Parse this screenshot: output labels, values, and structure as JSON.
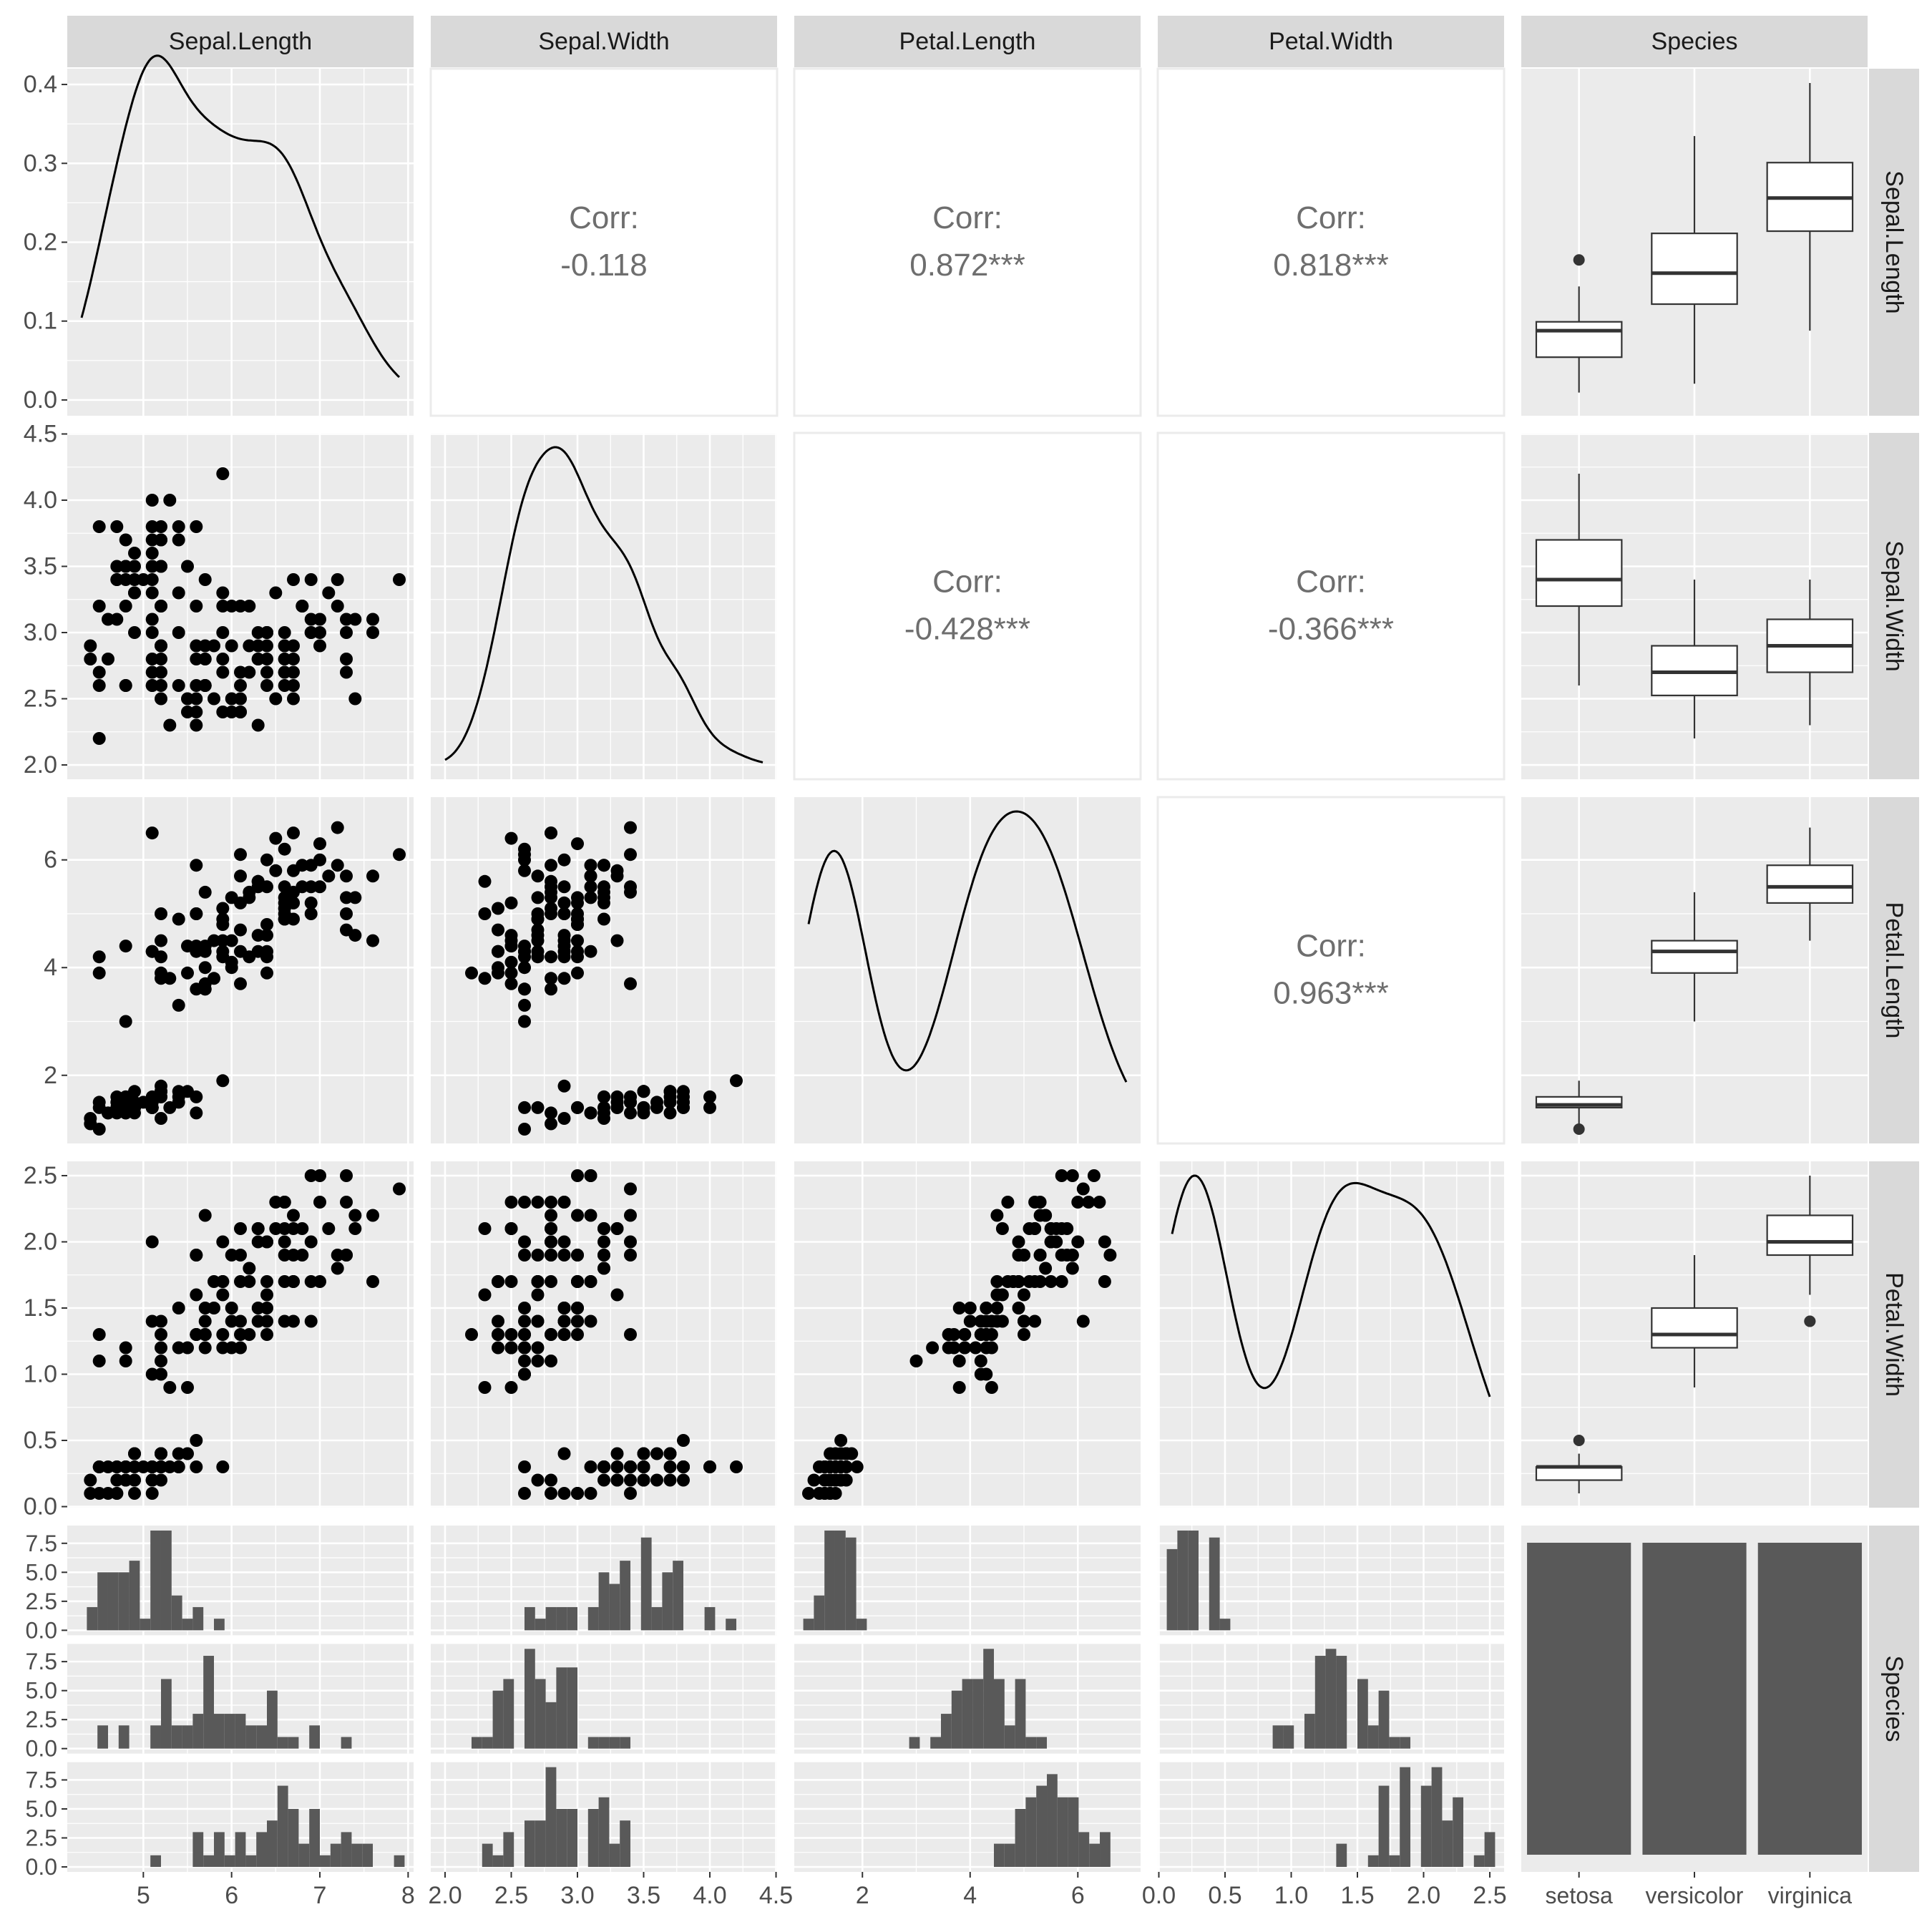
{
  "chart_data": {
    "type": "scatter",
    "title": "",
    "variables": [
      "Sepal.Length",
      "Sepal.Width",
      "Petal.Length",
      "Petal.Width",
      "Species"
    ],
    "species_levels": [
      "setosa",
      "versicolor",
      "virginica"
    ],
    "axis_ranges": {
      "Sepal.Length": [
        4.3,
        7.9
      ],
      "Sepal.Width": [
        2.0,
        4.4
      ],
      "Petal.Length": [
        1.0,
        6.9
      ],
      "Petal.Width": [
        0.1,
        2.5
      ]
    },
    "x_ticks": {
      "Sepal.Length": [
        "5",
        "6",
        "7",
        "8"
      ],
      "Sepal.Width": [
        "2.0",
        "2.5",
        "3.0",
        "3.5",
        "4.0",
        "4.5"
      ],
      "Petal.Length": [
        "2",
        "4",
        "6"
      ],
      "Petal.Width": [
        "0.0",
        "0.5",
        "1.0",
        "1.5",
        "2.0",
        "2.5"
      ],
      "Species": [
        "setosa",
        "versicolor",
        "virginica"
      ]
    },
    "y_ticks": {
      "Sepal.Length": [
        "0.0",
        "0.1",
        "0.2",
        "0.3",
        "0.4"
      ],
      "Sepal.Width": [
        "2.0",
        "2.5",
        "3.0",
        "3.5",
        "4.0",
        "4.5"
      ],
      "Petal.Length": [
        "2",
        "4",
        "6"
      ],
      "Petal.Width": [
        "0.0",
        "0.5",
        "1.0",
        "1.5",
        "2.0",
        "2.5"
      ],
      "Species": [
        "0.0",
        "2.5",
        "5.0",
        "7.5"
      ]
    },
    "correlations": [
      {
        "row": "Sepal.Length",
        "col": "Sepal.Width",
        "label": "Corr:",
        "value": "-0.118"
      },
      {
        "row": "Sepal.Length",
        "col": "Petal.Length",
        "label": "Corr:",
        "value": "0.872***"
      },
      {
        "row": "Sepal.Length",
        "col": "Petal.Width",
        "label": "Corr:",
        "value": "0.818***"
      },
      {
        "row": "Sepal.Width",
        "col": "Petal.Length",
        "label": "Corr:",
        "value": "-0.428***"
      },
      {
        "row": "Sepal.Width",
        "col": "Petal.Width",
        "label": "Corr:",
        "value": "-0.366***"
      },
      {
        "row": "Petal.Length",
        "col": "Petal.Width",
        "label": "Corr:",
        "value": "0.963***"
      }
    ],
    "density_ylim": [
      0,
      0.4
    ],
    "histogram_ylim": [
      0,
      8.6
    ],
    "species_bar_counts": [
      50,
      50,
      50
    ],
    "grid": true,
    "legend": "none"
  }
}
